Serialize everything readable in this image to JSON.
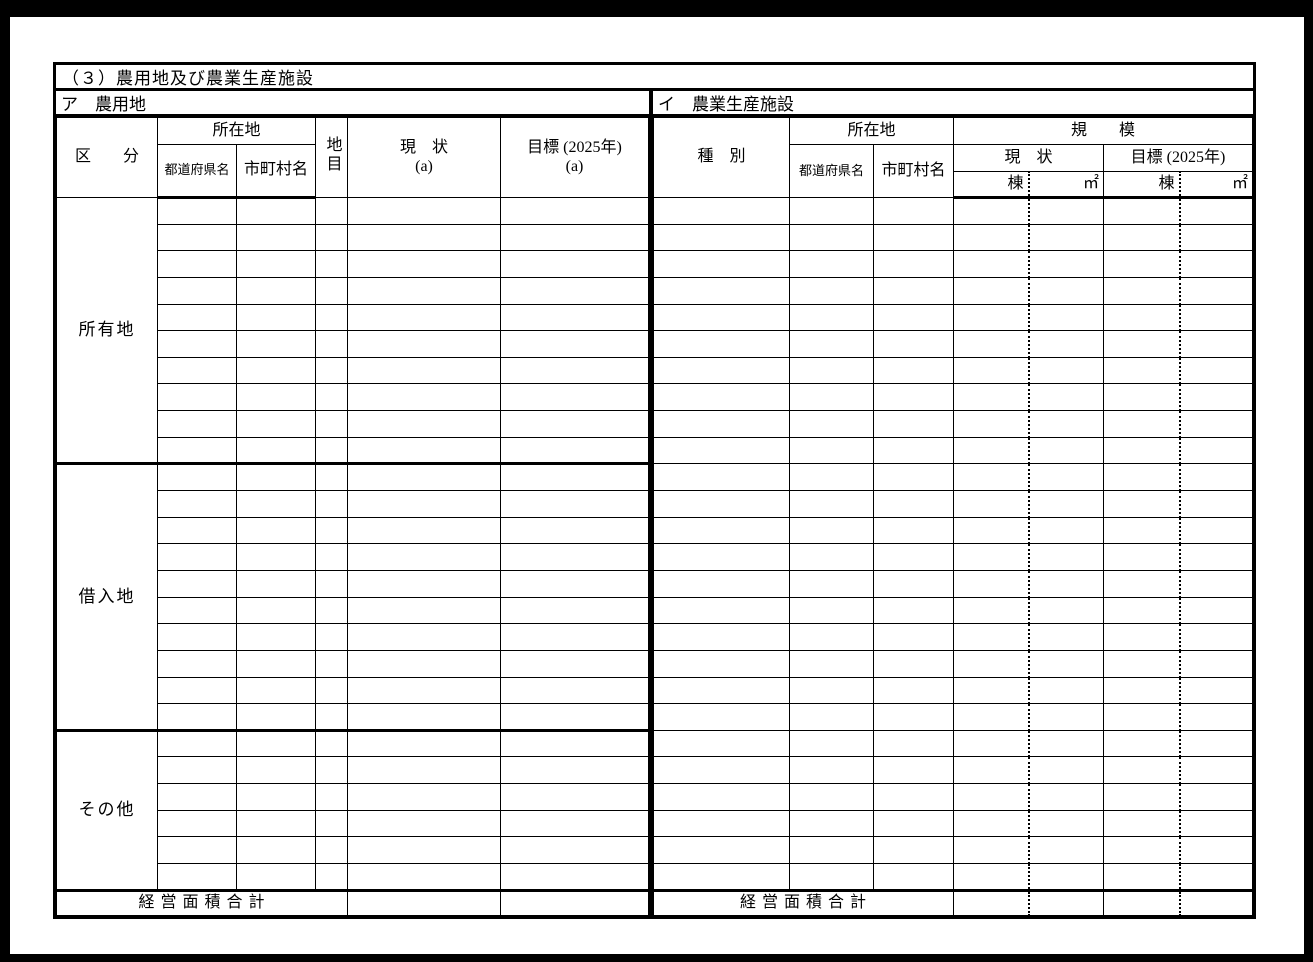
{
  "form": {
    "title": "（３）農用地及び農業生産施設"
  },
  "farmland": {
    "section_label": "ア　農用地",
    "headers": {
      "category": "区　　分",
      "location": "所在地",
      "prefecture": "都道府県名",
      "municipality": "市町村名",
      "land_type": "地目",
      "current_line1": "現　状",
      "current_line2": "(a)",
      "target_line1": "目標 (2025年)",
      "target_line2": "(a)"
    },
    "row_groups": [
      {
        "label": "所有地",
        "rows": 10
      },
      {
        "label": "借入地",
        "rows": 10
      },
      {
        "label": "その他",
        "rows": 6
      }
    ],
    "footer_label": "経 営 面 積 合 計"
  },
  "facilities": {
    "section_label": "イ　農業生産施設",
    "headers": {
      "type": "種　別",
      "location": "所在地",
      "prefecture": "都道府県名",
      "municipality": "市町村名",
      "scale": "規　　模",
      "current": "現　状",
      "target": "目標 (2025年)",
      "unit_buildings": "棟",
      "unit_area": "㎡"
    },
    "data_rows": 26,
    "footer_label": "経 営 面 積 合 計"
  },
  "colors": {
    "ink": "#000000",
    "paper": "#ffffff"
  }
}
